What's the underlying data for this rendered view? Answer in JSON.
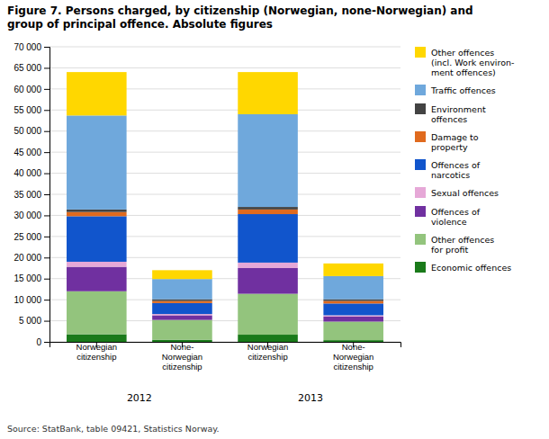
{
  "chart_data": {
    "type": "bar",
    "stacked": true,
    "title": "Figure 7. Persons charged, by citizenship (Norwegian, none-Norwegian) and\ngroup of principal offence. Absolute figures",
    "source": "Source: StatBank, table 09421, Statistics Norway.",
    "categories": [
      "Norwegian\ncitizenship",
      "None-\nNorwegian\ncitizenship",
      "Norwegian\ncitizenship",
      "None-\nNorwegian\ncitizenship"
    ],
    "group_labels": [
      "2012",
      "2013"
    ],
    "ylim": [
      0,
      70000
    ],
    "yticks": [
      0,
      {
        "value": 5000,
        "label": "5 000"
      },
      {
        "value": 10000,
        "label": "10 000"
      },
      {
        "value": 15000,
        "label": "15 000"
      },
      {
        "value": 20000,
        "label": "20 000"
      },
      {
        "value": 25000,
        "label": "25 000"
      },
      {
        "value": 30000,
        "label": "30 000"
      },
      {
        "value": 35000,
        "label": "35 000"
      },
      {
        "value": 40000,
        "label": "40 000"
      },
      {
        "value": 45000,
        "label": "45 000"
      },
      {
        "value": 50000,
        "label": "50 000"
      },
      {
        "value": 55000,
        "label": "55 000"
      },
      {
        "value": 60000,
        "label": "60 000"
      },
      {
        "value": 65000,
        "label": "65 000"
      },
      {
        "value": 70000,
        "label": "70 000"
      }
    ],
    "grid": true,
    "legend": "right",
    "series": [
      {
        "name": "Economic offences",
        "color": "#1a7a1a",
        "values": [
          1800,
          500,
          1700,
          400
        ]
      },
      {
        "name": "Other offences\nfor profit",
        "color": "#93c47d",
        "values": [
          10200,
          4700,
          9700,
          4400
        ]
      },
      {
        "name": "Offences of\nviolence",
        "color": "#7030a0",
        "values": [
          5800,
          1100,
          6100,
          1200
        ]
      },
      {
        "name": "Sexual offences",
        "color": "#e6a8d7",
        "values": [
          1200,
          300,
          1300,
          300
        ]
      },
      {
        "name": "Offences of\nnarcotics",
        "color": "#1155cc",
        "values": [
          10800,
          2600,
          11500,
          2800
        ]
      },
      {
        "name": "Damage to\nproperty",
        "color": "#e06a1e",
        "values": [
          1000,
          500,
          1100,
          600
        ]
      },
      {
        "name": "Environment\noffences",
        "color": "#434343",
        "values": [
          600,
          400,
          600,
          400
        ]
      },
      {
        "name": "Traffic offences",
        "color": "#6fa8dc",
        "values": [
          22300,
          4800,
          22000,
          5500
        ]
      },
      {
        "name": "Other offences\n(incl. Work environ-\nment offences)",
        "color": "#ffd700",
        "values": [
          10300,
          2100,
          10000,
          3000
        ]
      }
    ]
  }
}
